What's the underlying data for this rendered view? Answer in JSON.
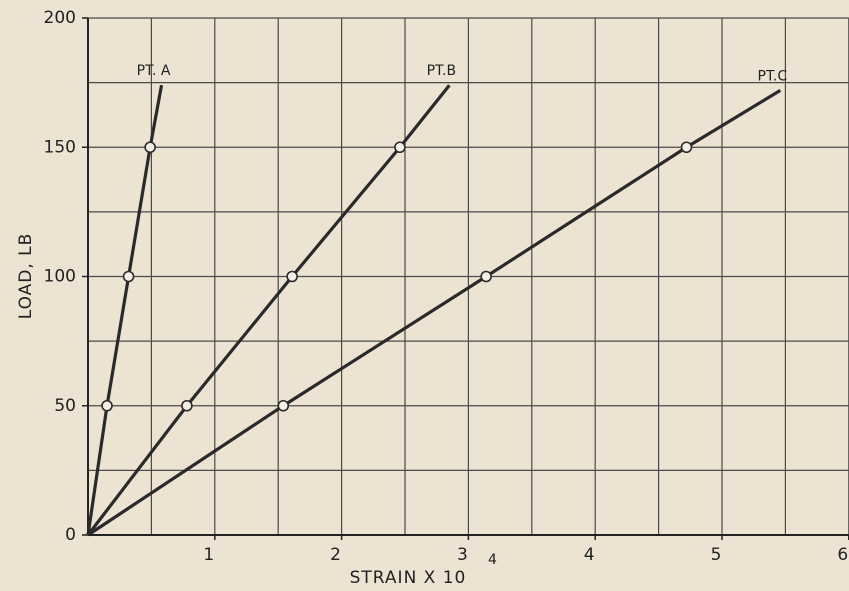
{
  "chart_data": {
    "type": "line",
    "xlabel": "STRAIN X 10",
    "xlabel_exponent": "4",
    "ylabel": "LOAD, LB",
    "xlim": [
      0,
      6
    ],
    "ylim": [
      0,
      200
    ],
    "xticks": [
      1,
      2,
      3,
      4,
      5,
      6
    ],
    "yticks": [
      0,
      50,
      100,
      150,
      200
    ],
    "grid": true,
    "grid_step": [
      0.5,
      25
    ],
    "series": [
      {
        "name": "PT. A",
        "color": "#2a2a2a",
        "x": [
          0,
          0.15,
          0.32,
          0.49,
          0.58
        ],
        "values": [
          0,
          50,
          100,
          150,
          174
        ],
        "markers": [
          false,
          true,
          true,
          true,
          false
        ]
      },
      {
        "name": "PT.B",
        "color": "#2a2a2a",
        "x": [
          0,
          0.78,
          1.61,
          2.46,
          2.85
        ],
        "values": [
          0,
          50,
          100,
          150,
          174
        ],
        "markers": [
          false,
          true,
          true,
          true,
          false
        ]
      },
      {
        "name": "PT.C",
        "color": "#2a2a2a",
        "x": [
          0,
          1.54,
          3.14,
          4.72,
          5.46
        ],
        "values": [
          0,
          50,
          100,
          150,
          172
        ],
        "markers": [
          false,
          true,
          true,
          true,
          false
        ]
      }
    ]
  }
}
